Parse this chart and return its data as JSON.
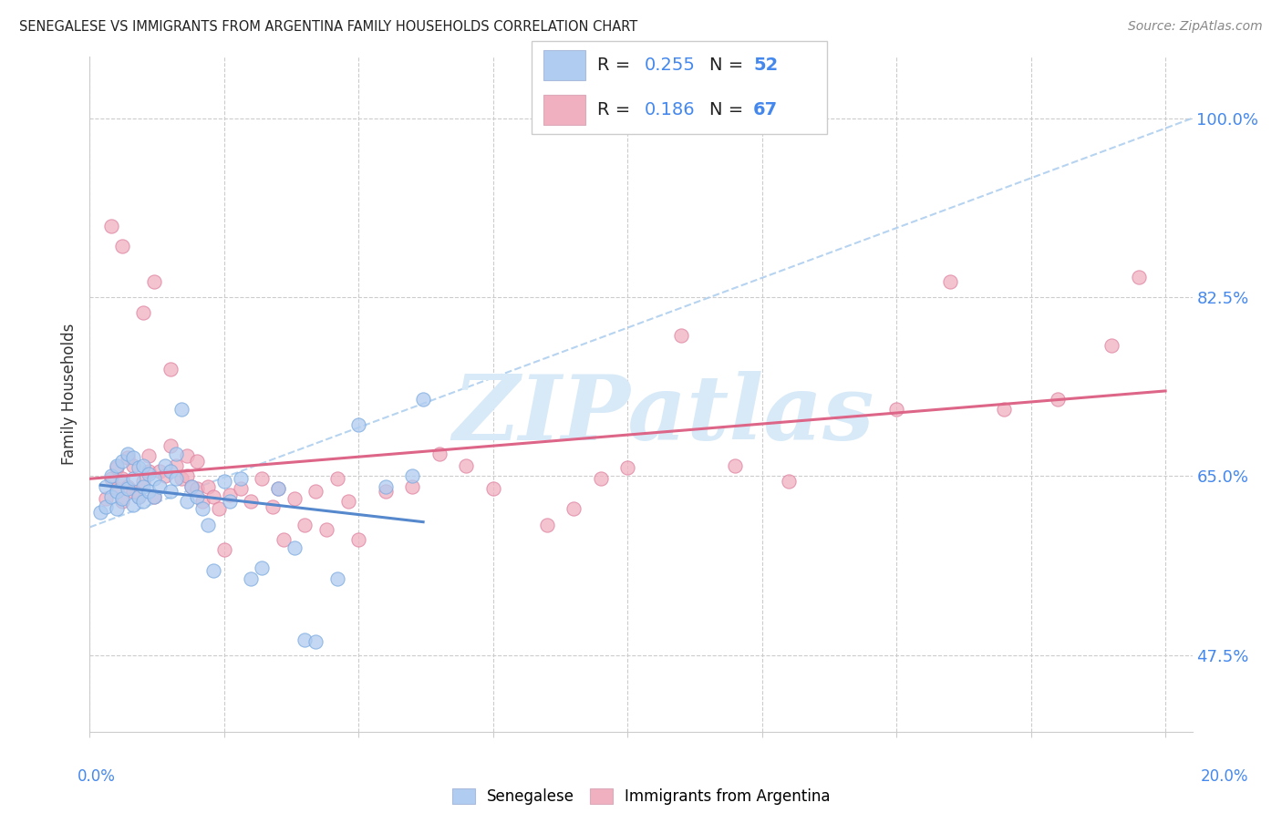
{
  "title": "SENEGALESE VS IMMIGRANTS FROM ARGENTINA FAMILY HOUSEHOLDS CORRELATION CHART",
  "source": "Source: ZipAtlas.com",
  "ylabel": "Family Households",
  "ytick_labels": [
    "47.5%",
    "65.0%",
    "82.5%",
    "100.0%"
  ],
  "ytick_values": [
    0.475,
    0.65,
    0.825,
    1.0
  ],
  "xlim": [
    0.0,
    0.205
  ],
  "ylim": [
    0.4,
    1.06
  ],
  "ylim_plot": [
    0.4,
    1.06
  ],
  "legend_R1": "0.255",
  "legend_N1": "52",
  "legend_R2": "0.186",
  "legend_N2": "67",
  "color_blue_fill": "#b0ccf0",
  "color_blue_edge": "#7aaae0",
  "color_pink_fill": "#f0b0c0",
  "color_pink_edge": "#e080a0",
  "color_line_blue": "#5588cc",
  "color_line_pink": "#dd6688",
  "color_dashed": "#aaccee",
  "color_blue_text": "#4488ee",
  "color_grid": "#cccccc",
  "color_spine": "#cccccc",
  "watermark_color": "#d8eaf8",
  "legend_patch_blue": "#b0ccf0",
  "legend_patch_pink": "#f0b0c0",
  "bottom_label1": "Senegalese",
  "bottom_label2": "Immigrants from Argentina",
  "scatter_size": 120,
  "scatter_alpha": 0.75
}
